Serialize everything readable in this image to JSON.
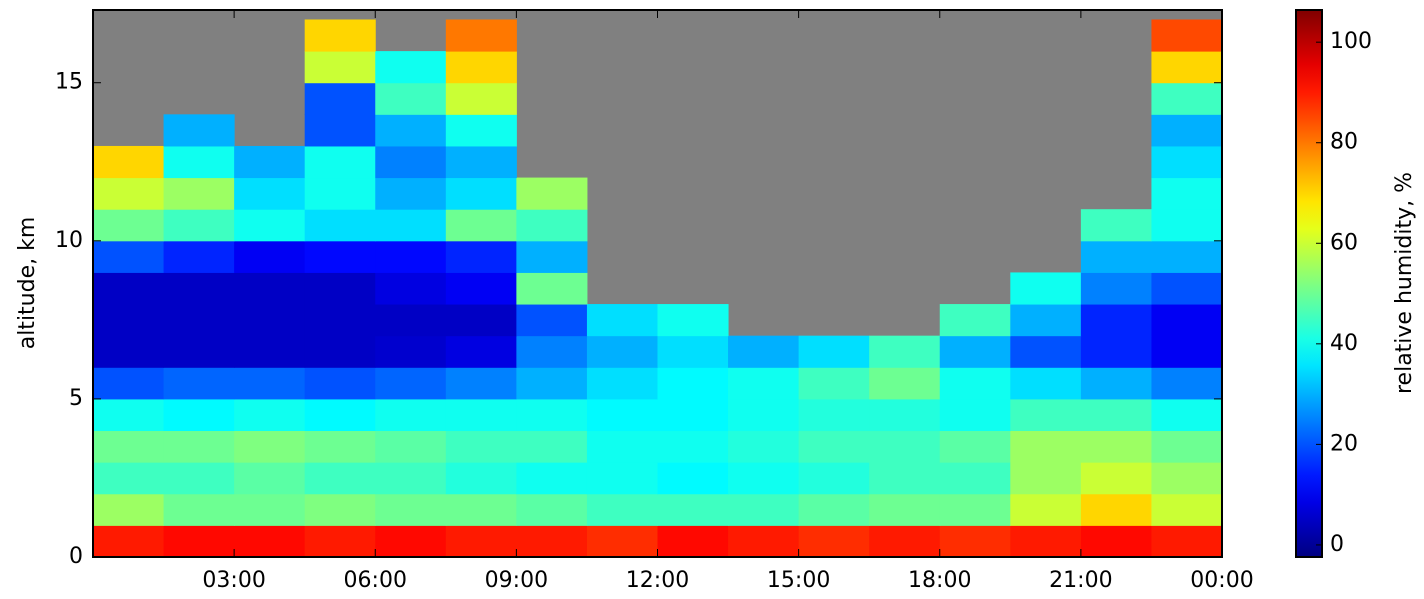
{
  "chart_data": {
    "type": "heatmap",
    "ylabel": "altitude, km",
    "colorbar_label": "relative humidity, %",
    "colormap": "jet",
    "background": "#808080",
    "xlim": [
      0,
      24
    ],
    "ylim": [
      0,
      17.3
    ],
    "xticks": [
      {
        "value": 3,
        "label": "03:00"
      },
      {
        "value": 6,
        "label": "06:00"
      },
      {
        "value": 9,
        "label": "09:00"
      },
      {
        "value": 12,
        "label": "12:00"
      },
      {
        "value": 15,
        "label": "15:00"
      },
      {
        "value": 18,
        "label": "18:00"
      },
      {
        "value": 21,
        "label": "21:00"
      },
      {
        "value": 24,
        "label": "00:00"
      }
    ],
    "yticks": [
      0,
      5,
      10,
      15
    ],
    "clim": [
      -2.4,
      106.4
    ],
    "cticks": [
      0,
      20,
      40,
      60,
      80,
      100
    ],
    "x_bins": [
      0,
      1.5,
      3,
      4.5,
      6,
      7.5,
      9,
      10.5,
      12,
      13.5,
      15,
      16.5,
      18,
      19.5,
      21,
      22.5,
      24
    ],
    "y_bins": [
      0,
      1,
      2,
      3,
      4,
      5,
      6,
      7,
      8,
      9,
      10,
      11,
      12,
      13,
      14,
      15,
      16,
      17
    ],
    "z": [
      [
        90,
        92,
        92,
        90,
        92,
        90,
        90,
        88,
        92,
        90,
        88,
        90,
        88,
        90,
        92,
        90
      ],
      [
        55,
        50,
        50,
        52,
        50,
        50,
        48,
        45,
        45,
        45,
        48,
        50,
        50,
        60,
        70,
        60
      ],
      [
        45,
        45,
        48,
        45,
        45,
        42,
        40,
        40,
        38,
        40,
        42,
        45,
        45,
        55,
        60,
        55
      ],
      [
        50,
        50,
        52,
        50,
        48,
        45,
        45,
        40,
        40,
        42,
        45,
        45,
        48,
        55,
        55,
        50
      ],
      [
        40,
        38,
        40,
        38,
        40,
        40,
        40,
        38,
        38,
        40,
        42,
        42,
        40,
        45,
        45,
        40
      ],
      [
        20,
        22,
        22,
        20,
        22,
        25,
        30,
        35,
        38,
        40,
        45,
        50,
        40,
        35,
        30,
        25
      ],
      [
        5,
        5,
        5,
        5,
        6,
        8,
        25,
        30,
        35,
        30,
        35,
        45,
        30,
        20,
        15,
        10
      ],
      [
        5,
        5,
        5,
        5,
        5,
        5,
        20,
        35,
        40,
        null,
        null,
        null,
        45,
        30,
        15,
        10
      ],
      [
        5,
        5,
        5,
        5,
        8,
        10,
        50,
        null,
        null,
        null,
        null,
        null,
        null,
        40,
        25,
        20
      ],
      [
        20,
        15,
        10,
        12,
        12,
        15,
        30,
        null,
        null,
        null,
        null,
        null,
        null,
        null,
        30,
        30
      ],
      [
        50,
        45,
        40,
        35,
        35,
        50,
        45,
        null,
        null,
        null,
        null,
        null,
        null,
        null,
        45,
        40
      ],
      [
        60,
        55,
        35,
        40,
        30,
        35,
        55,
        null,
        null,
        null,
        null,
        null,
        null,
        null,
        null,
        40
      ],
      [
        70,
        40,
        30,
        40,
        25,
        30,
        null,
        null,
        null,
        null,
        null,
        null,
        null,
        null,
        null,
        35
      ],
      [
        null,
        30,
        null,
        20,
        30,
        40,
        null,
        null,
        null,
        null,
        null,
        null,
        null,
        null,
        null,
        30
      ],
      [
        null,
        null,
        null,
        20,
        45,
        60,
        null,
        null,
        null,
        null,
        null,
        null,
        null,
        null,
        null,
        45
      ],
      [
        null,
        null,
        null,
        60,
        40,
        70,
        null,
        null,
        null,
        null,
        null,
        null,
        null,
        null,
        null,
        70
      ],
      [
        null,
        null,
        null,
        70,
        null,
        80,
        null,
        null,
        null,
        null,
        null,
        null,
        null,
        null,
        null,
        85
      ]
    ]
  }
}
